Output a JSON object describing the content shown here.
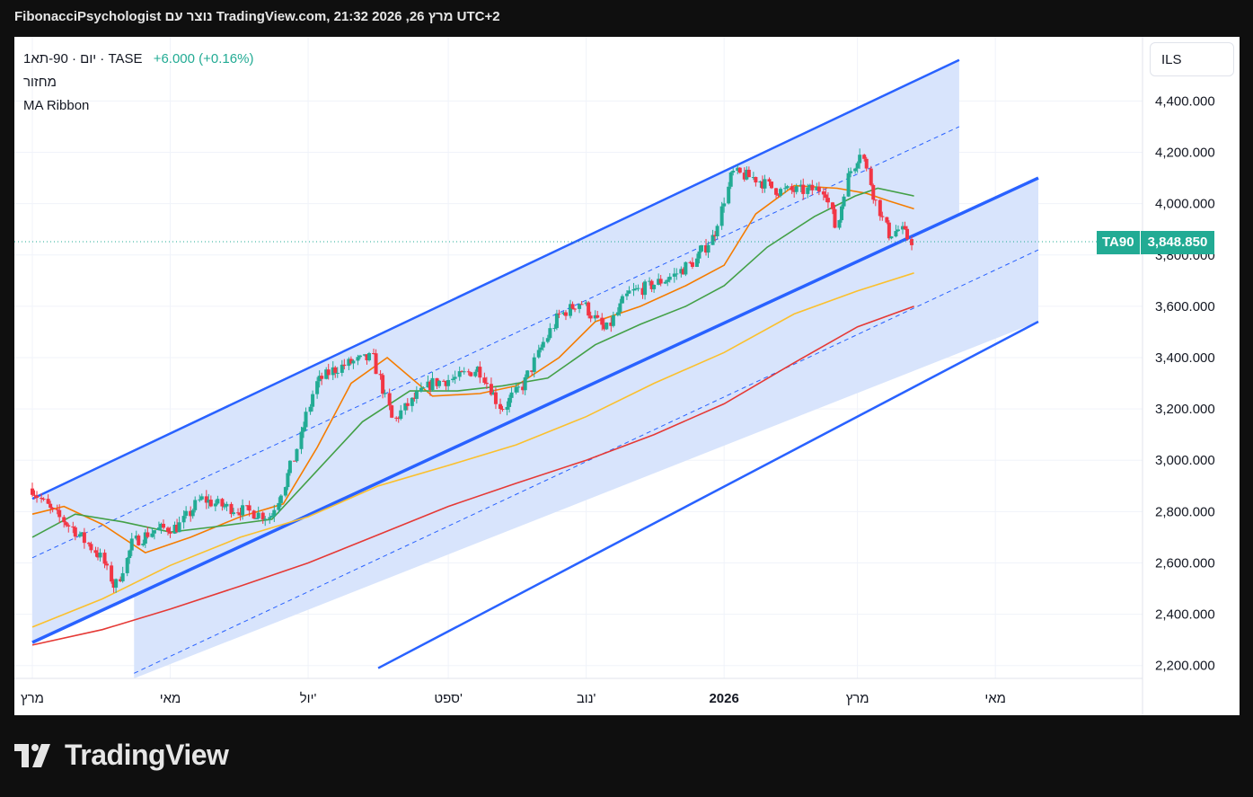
{
  "header": {
    "title": "FibonacciPsychologist נוצר עם TradingView.com, 21:32 2026 ,26 מרץ UTC+2"
  },
  "legend": {
    "symbol_line": "1יום · 90-תא · TASE",
    "change": "+6.000 (+0.16%)",
    "indicator_1": "מחזור",
    "indicator_2": "MA Ribbon"
  },
  "currency_button": "ILS",
  "price_tag": {
    "symbol": "TA90",
    "value": "3,848.850"
  },
  "brand": {
    "name": "TradingView"
  },
  "colors": {
    "up_candle": "#22ab94",
    "down_candle": "#f23645",
    "channel_line": "#2962ff",
    "channel_fill": "#d6e3fc",
    "ma_fast": "#f57c00",
    "ma_mid": "#43a047",
    "ma_slow": "#fbc02d",
    "ma_long": "#e53935",
    "price_tag": "#22ab94"
  },
  "chart_data": {
    "type": "candlestick",
    "y_unit": "ILS",
    "ylim": [
      2150,
      4650
    ],
    "y_ticks": [
      2200,
      2400,
      2600,
      2800,
      3000,
      3200,
      3400,
      3600,
      3800,
      4000,
      4200,
      4400
    ],
    "y_tick_labels": [
      "2,200.000",
      "2,400.000",
      "2,600.000",
      "2,800.000",
      "3,000.000",
      "3,200.000",
      "3,400.000",
      "3,600.000",
      "3,800.000",
      "4,000.000",
      "4,200.000",
      "4,400.000"
    ],
    "x_labels": [
      "מרץ",
      "מאי",
      "יול'",
      "ספט'",
      "נוב'",
      "2026",
      "מרץ",
      "מאי"
    ],
    "x_label_bold_index": 5,
    "x_range": [
      "2025-03-01",
      "2026-05-20"
    ],
    "x_label_dates": [
      "2025-03-01",
      "2025-05-01",
      "2025-07-01",
      "2025-09-01",
      "2025-11-01",
      "2026-01-01",
      "2026-03-01",
      "2026-05-01"
    ],
    "last_price": 3848.85,
    "close_series": {
      "dates": [
        "2025-03-01",
        "2025-03-10",
        "2025-03-20",
        "2025-04-01",
        "2025-04-07",
        "2025-04-15",
        "2025-04-25",
        "2025-05-05",
        "2025-05-15",
        "2025-05-25",
        "2025-06-05",
        "2025-06-15",
        "2025-06-25",
        "2025-07-05",
        "2025-07-12",
        "2025-07-20",
        "2025-07-30",
        "2025-08-08",
        "2025-08-15",
        "2025-08-25",
        "2025-09-05",
        "2025-09-15",
        "2025-09-25",
        "2025-10-05",
        "2025-10-12",
        "2025-10-20",
        "2025-10-30",
        "2025-11-10",
        "2025-11-20",
        "2025-11-30",
        "2025-12-10",
        "2025-12-20",
        "2025-12-28",
        "2026-01-05",
        "2026-01-15",
        "2026-01-25",
        "2026-02-05",
        "2026-02-15",
        "2026-02-20",
        "2026-02-25",
        "2026-03-03",
        "2026-03-08",
        "2026-03-15",
        "2026-03-20",
        "2026-03-26"
      ],
      "values": [
        2890,
        2800,
        2730,
        2620,
        2500,
        2680,
        2730,
        2740,
        2850,
        2820,
        2800,
        2780,
        3000,
        3300,
        3350,
        3380,
        3400,
        3150,
        3220,
        3300,
        3320,
        3360,
        3200,
        3300,
        3430,
        3560,
        3620,
        3500,
        3650,
        3680,
        3720,
        3780,
        3880,
        4120,
        4100,
        4050,
        4050,
        4060,
        3900,
        4100,
        4210,
        4050,
        3880,
        3900,
        3848.85
      ]
    },
    "series": [
      {
        "name": "MA fast",
        "color": "#f57c00",
        "dates": [
          "2025-03-01",
          "2025-03-15",
          "2025-04-01",
          "2025-04-20",
          "2025-05-10",
          "2025-06-01",
          "2025-06-20",
          "2025-07-05",
          "2025-07-20",
          "2025-08-05",
          "2025-08-25",
          "2025-09-15",
          "2025-10-01",
          "2025-10-20",
          "2025-11-05",
          "2025-11-25",
          "2025-12-15",
          "2026-01-01",
          "2026-01-15",
          "2026-02-01",
          "2026-02-20",
          "2026-03-05",
          "2026-03-15",
          "2026-03-26"
        ],
        "values": [
          2790,
          2820,
          2750,
          2640,
          2700,
          2780,
          2830,
          3050,
          3300,
          3400,
          3250,
          3260,
          3290,
          3400,
          3540,
          3600,
          3680,
          3760,
          3960,
          4070,
          4060,
          4040,
          4010,
          3980
        ]
      },
      {
        "name": "MA mid",
        "color": "#43a047",
        "dates": [
          "2025-03-01",
          "2025-03-20",
          "2025-04-10",
          "2025-05-01",
          "2025-05-20",
          "2025-06-15",
          "2025-07-05",
          "2025-07-25",
          "2025-08-15",
          "2025-09-05",
          "2025-09-25",
          "2025-10-15",
          "2025-11-05",
          "2025-11-25",
          "2025-12-15",
          "2026-01-01",
          "2026-01-20",
          "2026-02-10",
          "2026-02-28",
          "2026-03-10",
          "2026-03-26"
        ],
        "values": [
          2700,
          2790,
          2760,
          2720,
          2740,
          2770,
          2960,
          3150,
          3270,
          3270,
          3290,
          3320,
          3450,
          3530,
          3600,
          3680,
          3830,
          3950,
          4030,
          4060,
          4030
        ]
      },
      {
        "name": "MA slow",
        "color": "#fbc02d",
        "dates": [
          "2025-03-01",
          "2025-04-01",
          "2025-05-01",
          "2025-06-01",
          "2025-07-01",
          "2025-08-01",
          "2025-09-01",
          "2025-10-01",
          "2025-11-01",
          "2025-12-01",
          "2026-01-01",
          "2026-02-01",
          "2026-03-01",
          "2026-03-26"
        ],
        "values": [
          2350,
          2460,
          2590,
          2700,
          2780,
          2900,
          2980,
          3060,
          3170,
          3300,
          3420,
          3570,
          3660,
          3730
        ]
      },
      {
        "name": "MA long",
        "color": "#e53935",
        "dates": [
          "2025-03-01",
          "2025-04-01",
          "2025-05-01",
          "2025-06-01",
          "2025-07-01",
          "2025-08-01",
          "2025-09-01",
          "2025-10-01",
          "2025-11-01",
          "2025-12-01",
          "2026-01-01",
          "2026-02-01",
          "2026-03-01",
          "2026-03-26"
        ],
        "values": [
          2280,
          2340,
          2420,
          2510,
          2600,
          2710,
          2820,
          2910,
          3000,
          3100,
          3220,
          3380,
          3520,
          3600
        ]
      }
    ],
    "channel": {
      "upper_line": [
        [
          "2025-03-01",
          2850
        ],
        [
          "2026-04-15",
          4560
        ]
      ],
      "middle_line": [
        [
          "2025-03-01",
          2290
        ],
        [
          "2026-05-20",
          4100
        ]
      ],
      "lower_line": [
        [
          "2025-08-01",
          2190
        ],
        [
          "2026-05-20",
          3540
        ]
      ],
      "dashed_upper": [
        [
          "2025-03-01",
          2620
        ],
        [
          "2026-04-15",
          4300
        ]
      ],
      "dashed_lower": [
        [
          "2025-04-15",
          2170
        ],
        [
          "2026-05-20",
          3820
        ]
      ]
    }
  }
}
